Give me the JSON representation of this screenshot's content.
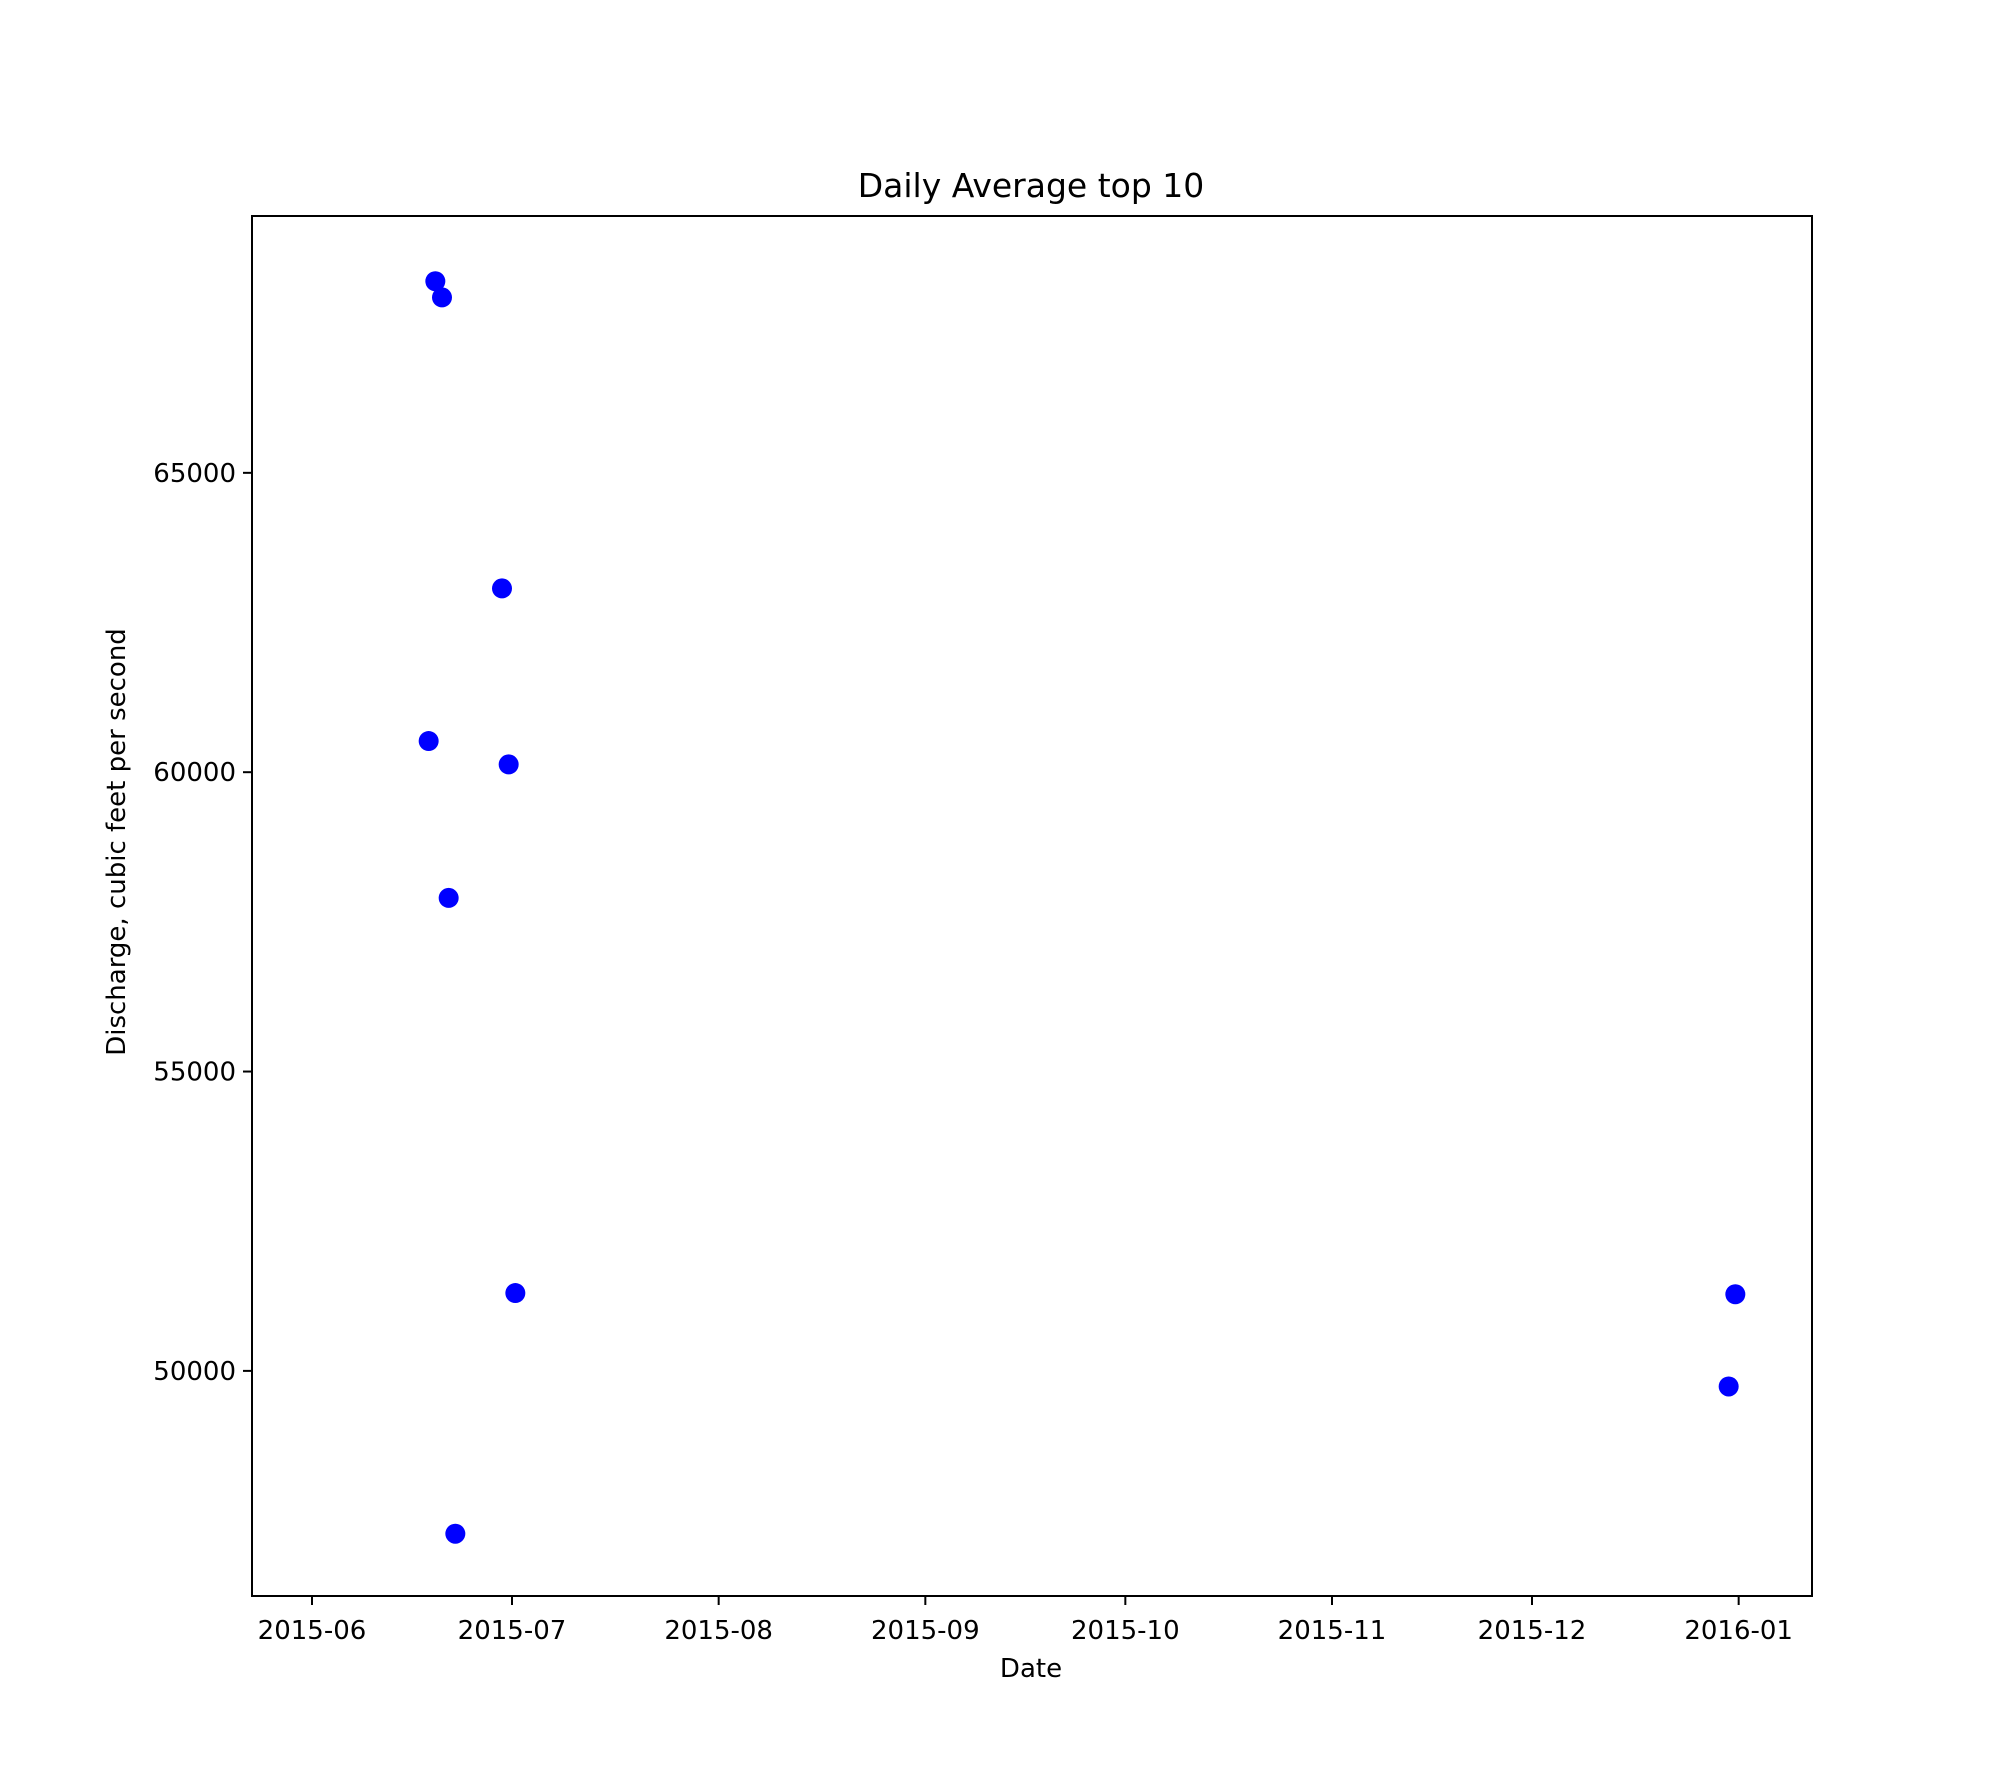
{
  "chart_data": {
    "type": "scatter",
    "title": "Daily Average top 10",
    "xlabel": "Date",
    "ylabel": "Discharge, cubic feet per second",
    "x_type": "date",
    "xlim": [
      "2015-05-23",
      "2016-01-12"
    ],
    "ylim": [
      46240,
      69290
    ],
    "x_ticks": [
      "2015-06-01",
      "2015-07-01",
      "2015-08-01",
      "2015-09-01",
      "2015-10-01",
      "2015-11-01",
      "2015-12-01",
      "2016-01-01"
    ],
    "x_tick_labels": [
      "2015-06",
      "2015-07",
      "2015-08",
      "2015-09",
      "2015-10",
      "2015-11",
      "2015-12",
      "2016-01"
    ],
    "y_ticks": [
      50000,
      55000,
      60000,
      65000
    ],
    "y_tick_labels": [
      "50000",
      "55000",
      "60000",
      "65000"
    ],
    "grid": false,
    "legend": "none",
    "marker_color": "#0000ff",
    "points": [
      {
        "x": "2015-06-19",
        "y": 68200
      },
      {
        "x": "2015-06-20",
        "y": 67930
      },
      {
        "x": "2015-06-29",
        "y": 63070
      },
      {
        "x": "2015-06-18",
        "y": 60520
      },
      {
        "x": "2015-06-30",
        "y": 60130
      },
      {
        "x": "2015-06-21",
        "y": 57900
      },
      {
        "x": "2015-07-01",
        "y": 51300
      },
      {
        "x": "2015-06-22",
        "y": 47280
      },
      {
        "x": "2015-12-31",
        "y": 51280
      },
      {
        "x": "2015-12-30",
        "y": 49740
      }
    ]
  }
}
